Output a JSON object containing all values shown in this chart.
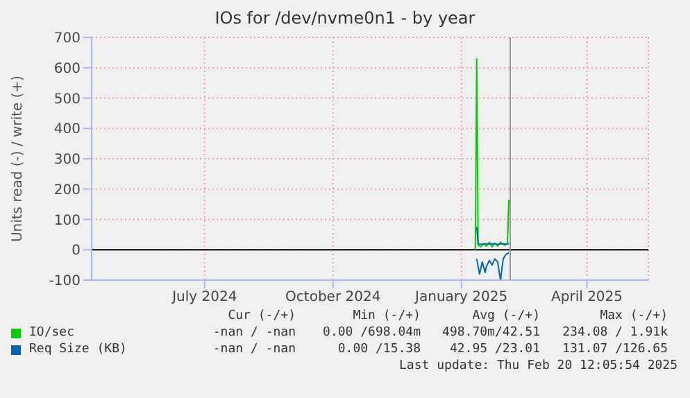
{
  "chart_data": {
    "type": "line",
    "title": "IOs for /dev/nvme0n1 - by year",
    "ylabel": "Units read (-) / write (+)",
    "xlim": [
      "2024-04-11",
      "2025-05-15"
    ],
    "xticks": [
      {
        "value": "2024-07-01",
        "label": "July 2024"
      },
      {
        "value": "2024-10-01",
        "label": "October 2024"
      },
      {
        "value": "2025-01-01",
        "label": "January 2025"
      },
      {
        "value": "2025-04-01",
        "label": "April 2025"
      }
    ],
    "ylim": [
      -100,
      700
    ],
    "yticks": [
      -100,
      0,
      100,
      200,
      300,
      400,
      500,
      600,
      700
    ],
    "grid": true,
    "legend": "bottom",
    "marker": "none",
    "line_style": "solid",
    "series": [
      {
        "name": "IO/sec",
        "color": "#00cc00",
        "x": [
          "2025-01-11",
          "2025-01-12",
          "2025-01-13",
          "2025-01-15",
          "2025-01-17",
          "2025-01-19",
          "2025-01-21",
          "2025-01-23",
          "2025-01-25",
          "2025-01-27",
          "2025-01-29",
          "2025-02-01",
          "2025-02-03",
          "2025-02-04"
        ],
        "values": [
          0,
          630,
          15,
          10,
          20,
          12,
          25,
          10,
          22,
          12,
          25,
          15,
          20,
          165
        ]
      },
      {
        "name": "Req Size (KB)",
        "color": "#0066b3",
        "x": [
          "2025-01-12",
          "2025-01-13",
          "2025-01-15",
          "2025-01-18",
          "2025-01-21",
          "2025-01-24",
          "2025-01-27",
          "2025-01-30",
          "2025-02-02",
          "2025-02-04"
        ],
        "values": [
          75,
          20,
          18,
          20,
          19,
          20,
          18,
          20,
          19,
          20
        ]
      },
      {
        "color": "#0066b3",
        "x": [
          "2025-01-12",
          "2025-01-14",
          "2025-01-16",
          "2025-01-18",
          "2025-01-19",
          "2025-01-21",
          "2025-01-23",
          "2025-01-25",
          "2025-01-27",
          "2025-01-29",
          "2025-01-31",
          "2025-02-02",
          "2025-02-04"
        ],
        "values": [
          -30,
          -80,
          -40,
          -75,
          -55,
          -35,
          -50,
          -30,
          -40,
          -100,
          -30,
          -15,
          -10
        ]
      }
    ],
    "ref_lines": [
      {
        "axis": "y",
        "value": 0,
        "color": "#000000"
      },
      {
        "axis": "x",
        "value": "2025-02-05",
        "color": "#999999"
      }
    ],
    "annotations": [
      "Cur (-/+)",
      "Min (-/+)",
      "Avg (-/+)",
      "Max (-/+)",
      "-nan / -nan",
      "0.00 /698.04m",
      "498.70m/42.51",
      "234.08 / 1.91k",
      "-nan / -nan",
      "0.00 /15.38",
      "42.95 /23.01",
      "131.07 /126.65",
      "Last update: Thu Feb 20 12:05:54 2025"
    ]
  }
}
